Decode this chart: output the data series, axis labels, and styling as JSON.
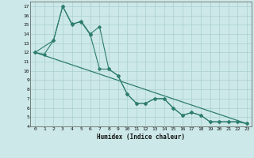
{
  "title": "",
  "xlabel": "Humidex (Indice chaleur)",
  "xlim": [
    -0.5,
    23.5
  ],
  "ylim": [
    4,
    17.5
  ],
  "yticks": [
    4,
    5,
    6,
    7,
    8,
    9,
    10,
    11,
    12,
    13,
    14,
    15,
    16,
    17
  ],
  "xticks": [
    0,
    1,
    2,
    3,
    4,
    5,
    6,
    7,
    8,
    9,
    10,
    11,
    12,
    13,
    14,
    15,
    16,
    17,
    18,
    19,
    20,
    21,
    22,
    23
  ],
  "line_color": "#2e7d6e",
  "bg_color": "#cce8e8",
  "grid_color": "#aacfcf",
  "line1_x": [
    0,
    1,
    2,
    3,
    4,
    5,
    6,
    7,
    8,
    9,
    10,
    11,
    12,
    13,
    14,
    15,
    16,
    17,
    18,
    19,
    20,
    21,
    22,
    23
  ],
  "line1_y": [
    12.0,
    11.8,
    13.3,
    17.0,
    15.0,
    15.4,
    14.0,
    14.8,
    10.2,
    9.5,
    7.5,
    6.5,
    6.5,
    7.0,
    7.0,
    6.0,
    5.2,
    5.5,
    5.2,
    4.5,
    4.5,
    4.5,
    4.5,
    4.3
  ],
  "line2_x": [
    0,
    2,
    3,
    4,
    5,
    6,
    7,
    8,
    9,
    10,
    11,
    12,
    13,
    14,
    15,
    16,
    17,
    18,
    19,
    20,
    21,
    22,
    23
  ],
  "line2_y": [
    12.0,
    13.3,
    17.0,
    15.1,
    15.3,
    13.9,
    10.2,
    10.2,
    9.5,
    7.5,
    6.5,
    6.5,
    7.0,
    7.0,
    6.0,
    5.2,
    5.5,
    5.2,
    4.5,
    4.5,
    4.5,
    4.5,
    4.3
  ],
  "line3_x": [
    0,
    23
  ],
  "line3_y": [
    12.0,
    4.3
  ]
}
